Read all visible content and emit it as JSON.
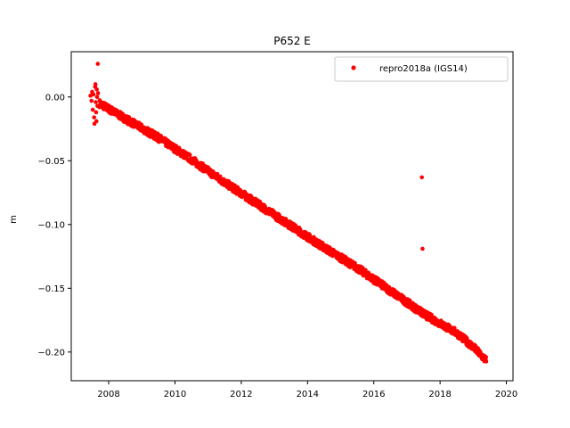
{
  "chart_data": {
    "type": "scatter",
    "title": "P652 E",
    "xlabel": "",
    "ylabel": "m",
    "xlim": [
      2006.87,
      2020.2
    ],
    "ylim": [
      -0.2225,
      0.0355
    ],
    "xticks": [
      2008,
      2010,
      2012,
      2014,
      2016,
      2018,
      2020
    ],
    "xtick_labels": [
      "2008",
      "2010",
      "2012",
      "2014",
      "2016",
      "2018",
      "2020"
    ],
    "yticks": [
      0.0,
      -0.05,
      -0.1,
      -0.15,
      -0.2
    ],
    "ytick_labels": [
      "0.00",
      "−0.05",
      "−0.10",
      "−0.15",
      "−0.20"
    ],
    "grid": false,
    "legend_position": "top-right",
    "series": [
      {
        "name": "repro2018a (IGS14)",
        "color": "#ff0000",
        "marker": "circle",
        "trend": [
          {
            "x": 2007.72,
            "y": -0.005
          },
          {
            "x": 2008.5,
            "y": -0.017
          },
          {
            "x": 2009.5,
            "y": -0.032
          },
          {
            "x": 2010.5,
            "y": -0.049
          },
          {
            "x": 2011.5,
            "y": -0.067
          },
          {
            "x": 2012.5,
            "y": -0.084
          },
          {
            "x": 2013.5,
            "y": -0.101
          },
          {
            "x": 2014.5,
            "y": -0.118
          },
          {
            "x": 2015.5,
            "y": -0.134
          },
          {
            "x": 2016.5,
            "y": -0.152
          },
          {
            "x": 2017.5,
            "y": -0.17
          },
          {
            "x": 2018.5,
            "y": -0.185
          },
          {
            "x": 2019.0,
            "y": -0.196
          },
          {
            "x": 2019.4,
            "y": -0.207
          }
        ],
        "points": [
          {
            "x": 2007.45,
            "y": 0.001
          },
          {
            "x": 2007.48,
            "y": -0.003
          },
          {
            "x": 2007.5,
            "y": 0.004
          },
          {
            "x": 2007.52,
            "y": -0.01
          },
          {
            "x": 2007.54,
            "y": 0.002
          },
          {
            "x": 2007.56,
            "y": -0.016
          },
          {
            "x": 2007.57,
            "y": -0.021
          },
          {
            "x": 2007.59,
            "y": 0.008
          },
          {
            "x": 2007.6,
            "y": 0.01
          },
          {
            "x": 2007.61,
            "y": -0.004
          },
          {
            "x": 2007.62,
            "y": -0.012
          },
          {
            "x": 2007.63,
            "y": -0.019
          },
          {
            "x": 2007.64,
            "y": 0.006
          },
          {
            "x": 2007.65,
            "y": 0.0
          },
          {
            "x": 2007.66,
            "y": -0.007
          },
          {
            "x": 2007.67,
            "y": 0.026
          },
          {
            "x": 2007.68,
            "y": 0.003
          },
          {
            "x": 2017.45,
            "y": -0.063
          },
          {
            "x": 2017.47,
            "y": -0.119
          }
        ]
      }
    ]
  }
}
